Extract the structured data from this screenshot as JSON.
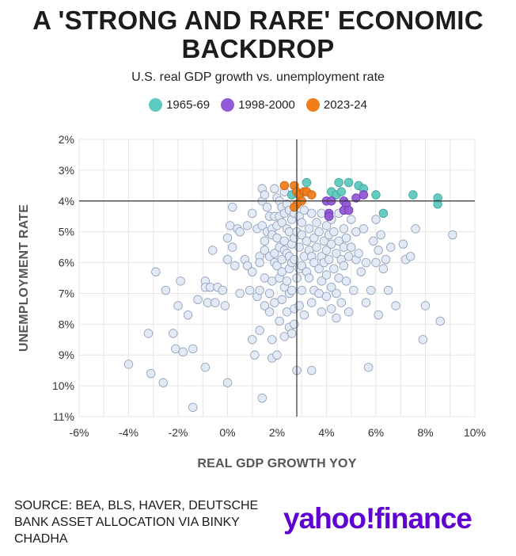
{
  "title": "A 'STRONG AND RARE' ECONOMIC BACKDROP",
  "subtitle": "U.S. real GDP growth vs. unemployment rate",
  "source": "SOURCE: BEA, BLS, HAVER, DEUTSCHE BANK ASSET ALLOCATION VIA BINKY CHADHA",
  "brand": "yahoo!finance",
  "legend": [
    {
      "label": "1965-69",
      "color": "#5ec9bf"
    },
    {
      "label": "1998-2000",
      "color": "#9359d6"
    },
    {
      "label": "2023-24",
      "color": "#f07d1a"
    }
  ],
  "chart_data": {
    "type": "scatter",
    "title": "A 'STRONG AND RARE' ECONOMIC BACKDROP",
    "subtitle": "U.S. real GDP growth vs. unemployment rate",
    "xlabel": "REAL GDP GROWTH YOY",
    "ylabel": "UNEMPLOYMENT RATE",
    "xlim": [
      -6,
      10
    ],
    "ylim": [
      2,
      11
    ],
    "y_inverted": true,
    "xticks": [
      -6,
      -4,
      -2,
      0,
      2,
      4,
      6,
      8,
      10
    ],
    "yticks": [
      2,
      3,
      4,
      5,
      6,
      7,
      8,
      9,
      10,
      11
    ],
    "x_tick_labels": [
      "-6%",
      "-4%",
      "-2%",
      "0%",
      "2%",
      "4%",
      "6%",
      "8%",
      "10%"
    ],
    "y_tick_labels": [
      "2%",
      "3%",
      "4%",
      "5%",
      "6%",
      "7%",
      "8%",
      "9%",
      "10%",
      "11%"
    ],
    "reference_lines": {
      "vertical_x": 2.8,
      "horizontal_y": 4.0
    },
    "grid": true,
    "series": [
      {
        "name": "Other periods",
        "color": "#e1e9f7",
        "stroke": "#8e9bb3",
        "points": [
          [
            -4.0,
            9.3
          ],
          [
            -3.2,
            8.3
          ],
          [
            -3.1,
            9.6
          ],
          [
            -2.9,
            6.3
          ],
          [
            -2.6,
            9.9
          ],
          [
            -2.5,
            6.9
          ],
          [
            -2.2,
            8.3
          ],
          [
            -2.1,
            8.8
          ],
          [
            -2.0,
            7.4
          ],
          [
            -1.9,
            6.6
          ],
          [
            -1.8,
            8.9
          ],
          [
            -1.6,
            7.7
          ],
          [
            -1.4,
            8.8
          ],
          [
            -1.4,
            10.7
          ],
          [
            -1.2,
            7.2
          ],
          [
            -0.9,
            6.6
          ],
          [
            -0.9,
            6.8
          ],
          [
            -0.9,
            9.4
          ],
          [
            -0.8,
            7.3
          ],
          [
            -0.7,
            6.8
          ],
          [
            -0.6,
            5.6
          ],
          [
            -0.5,
            7.3
          ],
          [
            -0.4,
            6.8
          ],
          [
            -0.2,
            6.9
          ],
          [
            -0.1,
            7.4
          ],
          [
            0.0,
            9.9
          ],
          [
            0.0,
            5.2
          ],
          [
            0.0,
            5.9
          ],
          [
            0.1,
            4.8
          ],
          [
            0.2,
            5.5
          ],
          [
            0.2,
            4.2
          ],
          [
            0.3,
            6.1
          ],
          [
            0.4,
            4.9
          ],
          [
            0.5,
            5.0
          ],
          [
            0.5,
            7.0
          ],
          [
            0.7,
            5.9
          ],
          [
            0.8,
            6.1
          ],
          [
            0.8,
            4.8
          ],
          [
            0.9,
            6.9
          ],
          [
            1.0,
            6.3
          ],
          [
            1.0,
            4.4
          ],
          [
            1.0,
            8.5
          ],
          [
            1.1,
            9.0
          ],
          [
            1.2,
            4.9
          ],
          [
            1.2,
            7.1
          ],
          [
            1.3,
            5.8
          ],
          [
            1.3,
            6.0
          ],
          [
            1.3,
            6.9
          ],
          [
            1.3,
            8.2
          ],
          [
            1.4,
            4.0
          ],
          [
            1.4,
            3.6
          ],
          [
            1.4,
            4.8
          ],
          [
            1.4,
            10.4
          ],
          [
            1.5,
            5.3
          ],
          [
            1.5,
            5.6
          ],
          [
            1.5,
            6.5
          ],
          [
            1.5,
            7.4
          ],
          [
            1.5,
            3.8
          ],
          [
            1.6,
            4.2
          ],
          [
            1.6,
            5.0
          ],
          [
            1.7,
            4.5
          ],
          [
            1.7,
            5.8
          ],
          [
            1.7,
            7.0
          ],
          [
            1.7,
            7.6
          ],
          [
            1.8,
            4.9
          ],
          [
            1.8,
            5.1
          ],
          [
            1.8,
            6.6
          ],
          [
            1.8,
            8.5
          ],
          [
            1.8,
            9.1
          ],
          [
            1.9,
            3.6
          ],
          [
            1.9,
            4.5
          ],
          [
            1.9,
            5.7
          ],
          [
            1.9,
            6.0
          ],
          [
            1.9,
            7.3
          ],
          [
            2.0,
            3.9
          ],
          [
            2.0,
            4.8
          ],
          [
            2.0,
            5.2
          ],
          [
            2.0,
            6.1
          ],
          [
            2.0,
            9.0
          ],
          [
            2.1,
            4.0
          ],
          [
            2.1,
            4.5
          ],
          [
            2.1,
            5.5
          ],
          [
            2.1,
            6.5
          ],
          [
            2.1,
            7.9
          ],
          [
            2.2,
            4.2
          ],
          [
            2.2,
            4.7
          ],
          [
            2.2,
            5.9
          ],
          [
            2.2,
            6.3
          ],
          [
            2.2,
            7.2
          ],
          [
            2.3,
            3.7
          ],
          [
            2.3,
            4.4
          ],
          [
            2.3,
            5.3
          ],
          [
            2.3,
            5.6
          ],
          [
            2.3,
            6.8
          ],
          [
            2.3,
            8.4
          ],
          [
            2.4,
            4.1
          ],
          [
            2.4,
            4.9
          ],
          [
            2.4,
            5.7
          ],
          [
            2.4,
            6.6
          ],
          [
            2.4,
            7.6
          ],
          [
            2.5,
            4.3
          ],
          [
            2.5,
            5.0
          ],
          [
            2.5,
            5.8
          ],
          [
            2.5,
            6.2
          ],
          [
            2.5,
            7.0
          ],
          [
            2.5,
            8.1
          ],
          [
            2.6,
            3.8
          ],
          [
            2.6,
            4.6
          ],
          [
            2.6,
            5.4
          ],
          [
            2.6,
            6.0
          ],
          [
            2.6,
            6.9
          ],
          [
            2.6,
            8.3
          ],
          [
            2.7,
            4.4
          ],
          [
            2.7,
            5.2
          ],
          [
            2.7,
            5.9
          ],
          [
            2.7,
            7.5
          ],
          [
            2.7,
            8.0
          ],
          [
            2.8,
            5.0
          ],
          [
            2.8,
            6.5
          ],
          [
            2.8,
            9.5
          ],
          [
            2.9,
            4.5
          ],
          [
            2.9,
            5.5
          ],
          [
            2.9,
            6.2
          ],
          [
            2.9,
            7.4
          ],
          [
            3.0,
            4.7
          ],
          [
            3.0,
            5.1
          ],
          [
            3.0,
            6.1
          ],
          [
            3.0,
            6.9
          ],
          [
            3.1,
            4.3
          ],
          [
            3.1,
            5.8
          ],
          [
            3.1,
            7.7
          ],
          [
            3.2,
            5.3
          ],
          [
            3.2,
            6.3
          ],
          [
            3.3,
            4.9
          ],
          [
            3.3,
            5.6
          ],
          [
            3.3,
            6.5
          ],
          [
            3.4,
            7.3
          ],
          [
            3.4,
            5.8
          ],
          [
            3.4,
            4.4
          ],
          [
            3.4,
            9.5
          ],
          [
            3.5,
            5.2
          ],
          [
            3.5,
            6.0
          ],
          [
            3.5,
            6.9
          ],
          [
            3.6,
            4.7
          ],
          [
            3.6,
            5.5
          ],
          [
            3.7,
            6.2
          ],
          [
            3.7,
            7.0
          ],
          [
            3.7,
            5.0
          ],
          [
            3.8,
            4.4
          ],
          [
            3.8,
            5.8
          ],
          [
            3.8,
            6.6
          ],
          [
            3.8,
            7.6
          ],
          [
            3.9,
            5.3
          ],
          [
            3.9,
            6.0
          ],
          [
            4.0,
            4.8
          ],
          [
            4.0,
            5.6
          ],
          [
            4.0,
            6.4
          ],
          [
            4.0,
            7.1
          ],
          [
            4.1,
            5.1
          ],
          [
            4.1,
            5.9
          ],
          [
            4.2,
            4.6
          ],
          [
            4.2,
            5.4
          ],
          [
            4.2,
            6.8
          ],
          [
            4.2,
            7.5
          ],
          [
            4.3,
            5.0
          ],
          [
            4.3,
            6.2
          ],
          [
            4.4,
            5.7
          ],
          [
            4.4,
            7.0
          ],
          [
            4.4,
            7.8
          ],
          [
            4.5,
            4.4
          ],
          [
            4.5,
            5.3
          ],
          [
            4.5,
            6.5
          ],
          [
            4.6,
            5.9
          ],
          [
            4.6,
            7.3
          ],
          [
            4.7,
            4.9
          ],
          [
            4.7,
            5.5
          ],
          [
            4.7,
            6.1
          ],
          [
            4.8,
            5.2
          ],
          [
            4.8,
            6.6
          ],
          [
            4.9,
            5.8
          ],
          [
            4.9,
            7.6
          ],
          [
            5.0,
            4.6
          ],
          [
            5.0,
            5.5
          ],
          [
            5.1,
            6.9
          ],
          [
            5.2,
            5.0
          ],
          [
            5.2,
            5.9
          ],
          [
            5.3,
            5.7
          ],
          [
            5.4,
            6.3
          ],
          [
            5.5,
            4.9
          ],
          [
            5.6,
            7.3
          ],
          [
            5.6,
            6.0
          ],
          [
            5.7,
            9.4
          ],
          [
            5.8,
            6.9
          ],
          [
            5.9,
            5.3
          ],
          [
            6.0,
            4.6
          ],
          [
            6.0,
            6.0
          ],
          [
            6.1,
            5.6
          ],
          [
            6.1,
            7.7
          ],
          [
            6.2,
            5.1
          ],
          [
            6.3,
            6.2
          ],
          [
            6.4,
            5.9
          ],
          [
            6.5,
            6.9
          ],
          [
            6.6,
            5.5
          ],
          [
            6.8,
            7.4
          ],
          [
            7.1,
            5.4
          ],
          [
            7.2,
            5.9
          ],
          [
            7.4,
            5.8
          ],
          [
            7.6,
            4.9
          ],
          [
            7.9,
            8.5
          ],
          [
            8.0,
            7.4
          ],
          [
            8.6,
            7.9
          ],
          [
            9.1,
            5.1
          ]
        ]
      },
      {
        "name": "1965-69",
        "color": "#5ec9bf",
        "stroke": "#3aa398",
        "points": [
          [
            2.6,
            3.8
          ],
          [
            2.9,
            3.8
          ],
          [
            3.2,
            3.4
          ],
          [
            4.2,
            3.7
          ],
          [
            4.4,
            3.8
          ],
          [
            4.5,
            3.4
          ],
          [
            4.6,
            3.7
          ],
          [
            4.9,
            3.4
          ],
          [
            5.3,
            3.5
          ],
          [
            5.5,
            3.6
          ],
          [
            6.0,
            3.8
          ],
          [
            6.3,
            4.4
          ],
          [
            7.5,
            3.8
          ],
          [
            8.5,
            3.9
          ],
          [
            8.5,
            4.1
          ]
        ]
      },
      {
        "name": "1998-2000",
        "color": "#9359d6",
        "stroke": "#6a35b0",
        "points": [
          [
            4.0,
            4.0
          ],
          [
            4.2,
            4.0
          ],
          [
            4.1,
            4.4
          ],
          [
            4.1,
            4.5
          ],
          [
            4.7,
            4.0
          ],
          [
            4.8,
            4.1
          ],
          [
            4.7,
            4.3
          ],
          [
            4.9,
            4.3
          ],
          [
            5.2,
            3.9
          ],
          [
            5.5,
            3.8
          ]
        ]
      },
      {
        "name": "2023-24",
        "color": "#f07d1a",
        "stroke": "#c26010",
        "points": [
          [
            2.3,
            3.5
          ],
          [
            2.7,
            3.5
          ],
          [
            2.8,
            3.7
          ],
          [
            2.9,
            3.8
          ],
          [
            3.0,
            4.0
          ],
          [
            2.8,
            4.1
          ],
          [
            2.7,
            4.2
          ],
          [
            3.1,
            3.7
          ],
          [
            3.2,
            3.7
          ],
          [
            3.4,
            3.8
          ]
        ]
      }
    ]
  }
}
